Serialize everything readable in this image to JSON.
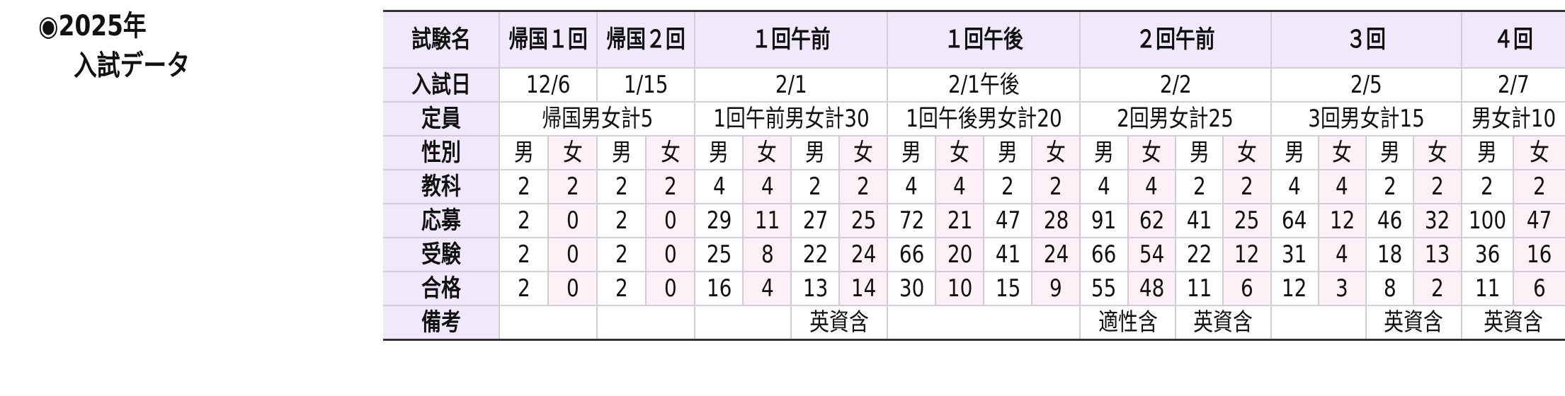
{
  "heading": {
    "line1": "◉2025年",
    "line2": "入試データ"
  },
  "colors": {
    "header_bg": "#f0e9fb",
    "female_bg": "#fdf0f6",
    "border": "#cfcdd8"
  },
  "table": {
    "labels": {
      "exam": "試験名",
      "date": "入試日",
      "capacity": "定員",
      "gender": "性別",
      "subjects": "教科",
      "applicants": "応募",
      "examinees": "受験",
      "passed": "合格",
      "notes": "備考"
    },
    "exams": [
      {
        "name": "帰国１回",
        "span": 2
      },
      {
        "name": "帰国２回",
        "span": 2
      },
      {
        "name": "１回午前",
        "span": 4
      },
      {
        "name": "１回午後",
        "span": 4
      },
      {
        "name": "２回午前",
        "span": 4
      },
      {
        "name": "３回",
        "span": 4
      },
      {
        "name": "４回",
        "span": 2
      }
    ],
    "dates": [
      {
        "text": "12/6",
        "span": 2
      },
      {
        "text": "1/15",
        "span": 2
      },
      {
        "text": "2/1",
        "span": 4
      },
      {
        "text": "2/1午後",
        "span": 4
      },
      {
        "text": "2/2",
        "span": 4
      },
      {
        "text": "2/5",
        "span": 4
      },
      {
        "text": "2/7",
        "span": 2
      }
    ],
    "capacities": [
      {
        "text": "帰国男女計5",
        "span": 4
      },
      {
        "text": "1回午前男女計30",
        "span": 4
      },
      {
        "text": "1回午後男女計20",
        "span": 4
      },
      {
        "text": "2回男女計25",
        "span": 4
      },
      {
        "text": "3回男女計15",
        "span": 4
      },
      {
        "text": "男女計10",
        "span": 2
      }
    ],
    "genders": [
      "男",
      "女",
      "男",
      "女",
      "男",
      "女",
      "男",
      "女",
      "男",
      "女",
      "男",
      "女",
      "男",
      "女",
      "男",
      "女",
      "男",
      "女",
      "男",
      "女",
      "男",
      "女"
    ],
    "subjects": [
      "2",
      "2",
      "2",
      "2",
      "4",
      "4",
      "2",
      "2",
      "4",
      "4",
      "2",
      "2",
      "4",
      "4",
      "2",
      "2",
      "4",
      "4",
      "2",
      "2",
      "2",
      "2"
    ],
    "applicants": [
      "2",
      "0",
      "2",
      "0",
      "29",
      "11",
      "27",
      "25",
      "72",
      "21",
      "47",
      "28",
      "91",
      "62",
      "41",
      "25",
      "64",
      "12",
      "46",
      "32",
      "100",
      "47"
    ],
    "examinees": [
      "2",
      "0",
      "2",
      "0",
      "25",
      "8",
      "22",
      "24",
      "66",
      "20",
      "41",
      "24",
      "66",
      "54",
      "22",
      "12",
      "31",
      "4",
      "18",
      "13",
      "36",
      "16"
    ],
    "passed": [
      "2",
      "0",
      "2",
      "0",
      "16",
      "4",
      "13",
      "14",
      "30",
      "10",
      "15",
      "9",
      "55",
      "48",
      "11",
      "6",
      "12",
      "3",
      "8",
      "2",
      "11",
      "6"
    ],
    "notes": [
      {
        "text": "",
        "span": 2
      },
      {
        "text": "",
        "span": 2
      },
      {
        "text": "",
        "span": 2
      },
      {
        "text": "英資含",
        "span": 2
      },
      {
        "text": "",
        "span": 4
      },
      {
        "text": "適性含",
        "span": 2
      },
      {
        "text": "英資含",
        "span": 2
      },
      {
        "text": "",
        "span": 2
      },
      {
        "text": "英資含",
        "span": 2
      },
      {
        "text": "英資含",
        "span": 2
      }
    ]
  }
}
